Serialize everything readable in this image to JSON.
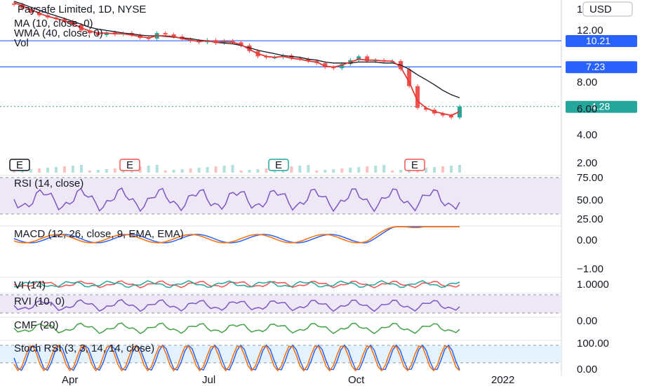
{
  "header": {
    "symbol_line": "Paysafe Limited, 1D, NYSE",
    "ma_label": "MA (10, close, 0)",
    "wma_label": "WMA (40, close, 0)",
    "vol_label": "Vol"
  },
  "currency": "USD",
  "colors": {
    "up": "#26a69a",
    "down": "#ef5350",
    "ma": "#e53935",
    "wma": "#131722",
    "hline": "#2962ff",
    "rsi": "#7e57c2",
    "macd": "#2962ff",
    "signal": "#ff6d00",
    "vi_plus": "#26a69a",
    "vi_minus": "#ef5350",
    "cmf": "#43a047",
    "stoch_k": "#2962ff",
    "stoch_d": "#ff6d00"
  },
  "chart_data": {
    "type": "candlestick",
    "price_axis_ticks": [
      "12.00",
      "8.00",
      "6.00",
      "4.00",
      "2.00"
    ],
    "price_axis_top_partial": "1",
    "x_tick_labels": [
      "Apr",
      "Jul",
      "Oct",
      "2022"
    ],
    "horizontal_levels": [
      {
        "value": 10.21,
        "label": "10.21"
      },
      {
        "value": 7.23,
        "label": "7.23"
      }
    ],
    "last_price": {
      "value": 4.28,
      "label": "4.28"
    },
    "earnings_markers": [
      "E",
      "E",
      "E",
      "E"
    ],
    "price_series": [
      16.5,
      15.6,
      14.8,
      14.3,
      13.9,
      13.6,
      13.2,
      12.6,
      11.7,
      11.3,
      11.0,
      11.4,
      11.1,
      11.3,
      11.0,
      10.6,
      10.5,
      11.3,
      11.1,
      10.8,
      10.4,
      10.2,
      10.0,
      10.3,
      9.9,
      10.2,
      10.0,
      9.6,
      8.9,
      8.3,
      8.2,
      8.2,
      8.4,
      8.1,
      8.0,
      7.8,
      7.6,
      7.2,
      7.1,
      7.5,
      7.9,
      8.3,
      7.8,
      7.9,
      7.8,
      7.8,
      7.0,
      5.6,
      4.2,
      4.1,
      3.9,
      3.8,
      3.7,
      4.28
    ],
    "ma_series": [
      16.9,
      16.2,
      15.4,
      14.7,
      14.1,
      13.7,
      13.3,
      12.8,
      12.1,
      11.6,
      11.3,
      11.3,
      11.2,
      11.2,
      11.0,
      10.8,
      10.6,
      10.9,
      10.9,
      10.8,
      10.5,
      10.3,
      10.1,
      10.2,
      10.0,
      10.1,
      10.0,
      9.7,
      9.1,
      8.6,
      8.3,
      8.2,
      8.3,
      8.1,
      8.0,
      7.8,
      7.7,
      7.3,
      7.2,
      7.4,
      7.7,
      8.0,
      7.9,
      7.9,
      7.8,
      7.8,
      7.2,
      5.9,
      4.6,
      4.2,
      4.0,
      3.9,
      3.8,
      4.0
    ],
    "wma_series": [
      17.2,
      16.6,
      15.9,
      15.3,
      14.7,
      14.2,
      13.7,
      13.2,
      12.7,
      12.2,
      11.9,
      11.7,
      11.5,
      11.3,
      11.2,
      11.0,
      10.9,
      10.9,
      10.8,
      10.7,
      10.6,
      10.5,
      10.3,
      10.2,
      10.0,
      9.9,
      9.8,
      9.6,
      9.3,
      9.0,
      8.8,
      8.6,
      8.4,
      8.3,
      8.2,
      8.0,
      7.9,
      7.7,
      7.6,
      7.6,
      7.6,
      7.7,
      7.7,
      7.7,
      7.6,
      7.6,
      7.4,
      7.0,
      6.5,
      6.1,
      5.7,
      5.3,
      5.0,
      4.8
    ],
    "panes": [
      {
        "name": "RSI (14, close)",
        "ticks": [
          "75.00",
          "50.00",
          "25.00"
        ]
      },
      {
        "name": "MACD (12, 26, close, 9, EMA, EMA)",
        "ticks": [
          "0.00",
          "−1.00"
        ]
      },
      {
        "name": "VI (14)",
        "ticks": [
          "1.0000"
        ]
      },
      {
        "name": "RVI (10, 0)",
        "ticks": []
      },
      {
        "name": "CMF (20)",
        "ticks": [
          "0.00"
        ]
      },
      {
        "name": "Stoch RSI (3, 3, 14, 14, close)",
        "ticks": [
          "100.00",
          "0.00"
        ]
      }
    ]
  }
}
